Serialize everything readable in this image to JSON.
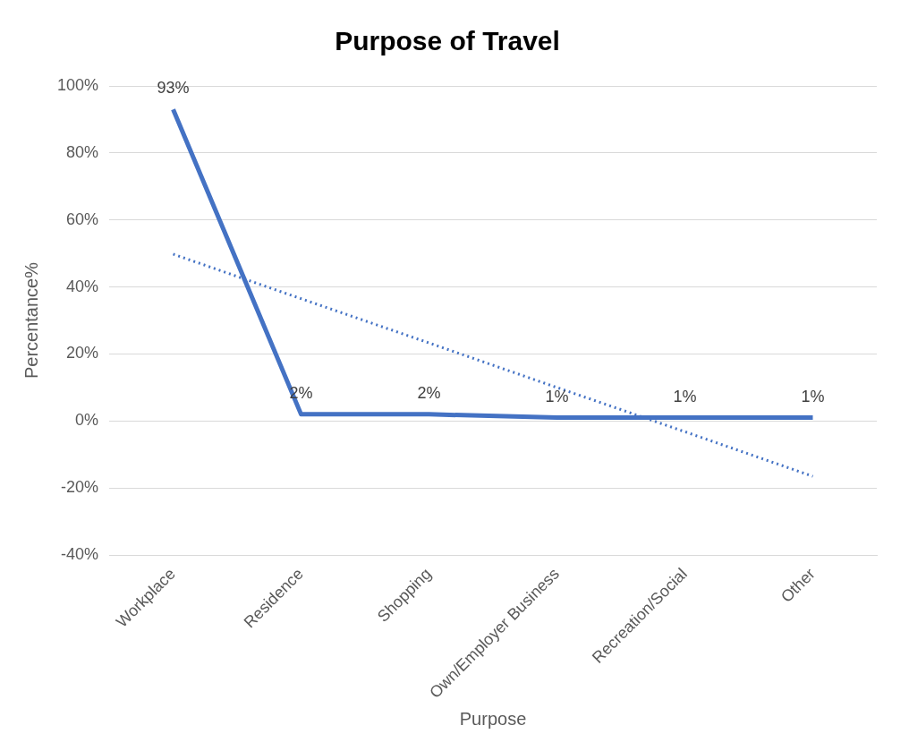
{
  "chart_data": {
    "type": "line",
    "title": "Purpose of Travel",
    "xlabel": "Purpose",
    "ylabel": "Percentance%",
    "categories": [
      "Workplace",
      "Residence",
      "Shopping",
      "Own/Employer Business",
      "Recreation/Social",
      "Other"
    ],
    "series": [
      {
        "color": "#4472c4",
        "values": [
          93,
          2,
          2,
          1,
          1,
          1
        ],
        "value_labels": [
          "93%",
          "2%",
          "2%",
          "1%",
          "1%",
          "1%"
        ],
        "line_style": "solid"
      },
      {
        "type": "line",
        "color": "#4472c4",
        "values": [
          49.8,
          36.5,
          23.3,
          10.0,
          -3.2,
          -16.5
        ],
        "line_style": "dotted"
      }
    ],
    "ylim": [
      -40,
      100
    ],
    "yticks": [
      {
        "value": -40,
        "label": "-40%"
      },
      {
        "value": -20,
        "label": "-20%"
      },
      {
        "value": 0,
        "label": "0%"
      },
      {
        "value": 20,
        "label": "20%"
      },
      {
        "value": 40,
        "label": "40%"
      },
      {
        "value": 60,
        "label": "60%"
      },
      {
        "value": 80,
        "label": "80%"
      },
      {
        "value": 100,
        "label": "100%"
      }
    ],
    "grid": "y",
    "legend": false,
    "marker": "none"
  }
}
